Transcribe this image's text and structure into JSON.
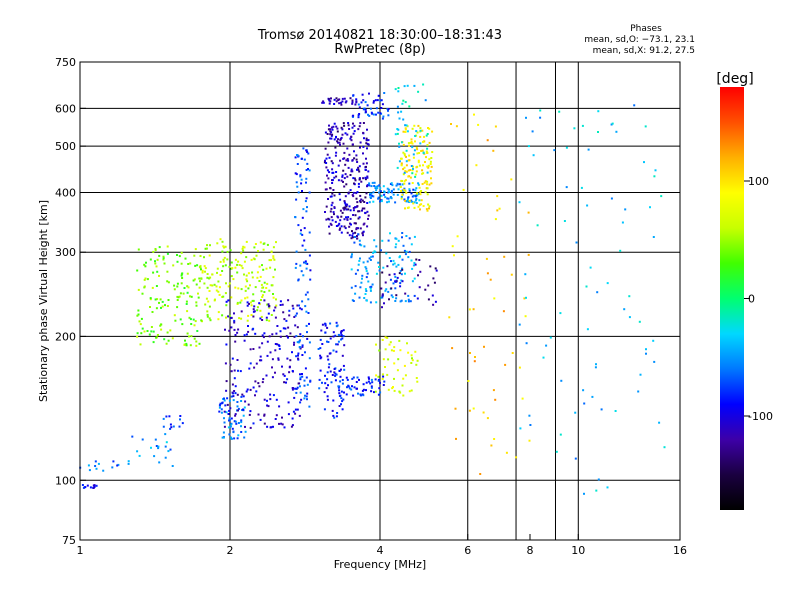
{
  "chart_data": {
    "type": "scatter",
    "title": "Tromsø 20140821 18:30:00–18:31:43",
    "subtitle": "RwPretec (8p)",
    "xlabel": "Frequency [MHz]",
    "ylabel": "Stationary phase Virtual Height [km]",
    "x_scale": "log",
    "y_scale": "log",
    "xlim": [
      1,
      16
    ],
    "ylim": [
      75,
      750
    ],
    "x_ticks": [
      1,
      2,
      4,
      6,
      8,
      10,
      16
    ],
    "y_ticks": [
      75,
      100,
      200,
      300,
      400,
      500,
      600,
      750
    ],
    "x_grid": [
      2,
      4,
      6,
      7.5,
      9,
      10
    ],
    "y_grid": [
      100,
      200,
      300,
      400,
      500,
      600
    ],
    "grid": true,
    "phase_header": "Phases",
    "phase_stats": [
      "mean, sd,O: −73.1, 23.1",
      "mean, sd,X:  91.2, 27.5"
    ],
    "colorbar": {
      "label": "[deg]",
      "range": [
        -180,
        180
      ],
      "ticks": [
        100,
        0,
        -100
      ],
      "colormap": [
        "#000000",
        "#1a0040",
        "#3d00a8",
        "#0000ff",
        "#0078ff",
        "#00d8ff",
        "#00ff70",
        "#40ff00",
        "#c8ff00",
        "#ffff00",
        "#ffb000",
        "#ff5000",
        "#ff0000"
      ]
    },
    "clusters": [
      {
        "x": [
          1.0,
          1.08
        ],
        "y": [
          96,
          98
        ],
        "phase": -90,
        "n": 12
      },
      {
        "x": [
          1.0,
          1.2
        ],
        "y": [
          104,
          112
        ],
        "phase": -60,
        "n": 12
      },
      {
        "x": [
          1.25,
          1.55
        ],
        "y": [
          103,
          125
        ],
        "phase": -50,
        "n": 20
      },
      {
        "x": [
          1.45,
          1.65
        ],
        "y": [
          128,
          140
        ],
        "phase": -80,
        "n": 12
      },
      {
        "x": [
          1.3,
          1.75
        ],
        "y": [
          190,
          310
        ],
        "phase": 40,
        "n": 160
      },
      {
        "x": [
          1.75,
          2.5
        ],
        "y": [
          215,
          320
        ],
        "phase": 60,
        "n": 190
      },
      {
        "x": [
          1.9,
          2.15
        ],
        "y": [
          122,
          150
        ],
        "phase": -60,
        "n": 60
      },
      {
        "x": [
          1.95,
          2.8
        ],
        "y": [
          128,
          240
        ],
        "phase": -105,
        "n": 220
      },
      {
        "x": [
          2.7,
          2.9
        ],
        "y": [
          140,
          500
        ],
        "phase": -75,
        "n": 120
      },
      {
        "x": [
          3.0,
          3.4
        ],
        "y": [
          135,
          215
        ],
        "phase": -85,
        "n": 90
      },
      {
        "x": [
          3.1,
          3.8
        ],
        "y": [
          320,
          560
        ],
        "phase": -115,
        "n": 300
      },
      {
        "x": [
          3.05,
          3.6
        ],
        "y": [
          610,
          630
        ],
        "phase": -115,
        "n": 30
      },
      {
        "x": [
          3.5,
          4.2
        ],
        "y": [
          570,
          650
        ],
        "phase": -80,
        "n": 50
      },
      {
        "x": [
          3.5,
          4.7
        ],
        "y": [
          235,
          330
        ],
        "phase": -50,
        "n": 130
      },
      {
        "x": [
          3.3,
          4.1
        ],
        "y": [
          150,
          165
        ],
        "phase": -80,
        "n": 60
      },
      {
        "x": [
          3.9,
          4.8
        ],
        "y": [
          150,
          200
        ],
        "phase": 70,
        "n": 50
      },
      {
        "x": [
          3.8,
          4.8
        ],
        "y": [
          380,
          420
        ],
        "phase": -55,
        "n": 100
      },
      {
        "x": [
          4.4,
          5.1
        ],
        "y": [
          365,
          560
        ],
        "phase": 90,
        "n": 140
      },
      {
        "x": [
          4.0,
          5.2
        ],
        "y": [
          230,
          290
        ],
        "phase": -120,
        "n": 40
      },
      {
        "x": [
          4.3,
          5.0
        ],
        "y": [
          430,
          680
        ],
        "phase": -30,
        "n": 50
      },
      {
        "x": [
          5.5,
          8.0
        ],
        "y": [
          100,
          600
        ],
        "phase": 110,
        "n": 55
      },
      {
        "x": [
          7.5,
          15.0
        ],
        "y": [
          90,
          620
        ],
        "phase": -40,
        "n": 80
      }
    ]
  }
}
